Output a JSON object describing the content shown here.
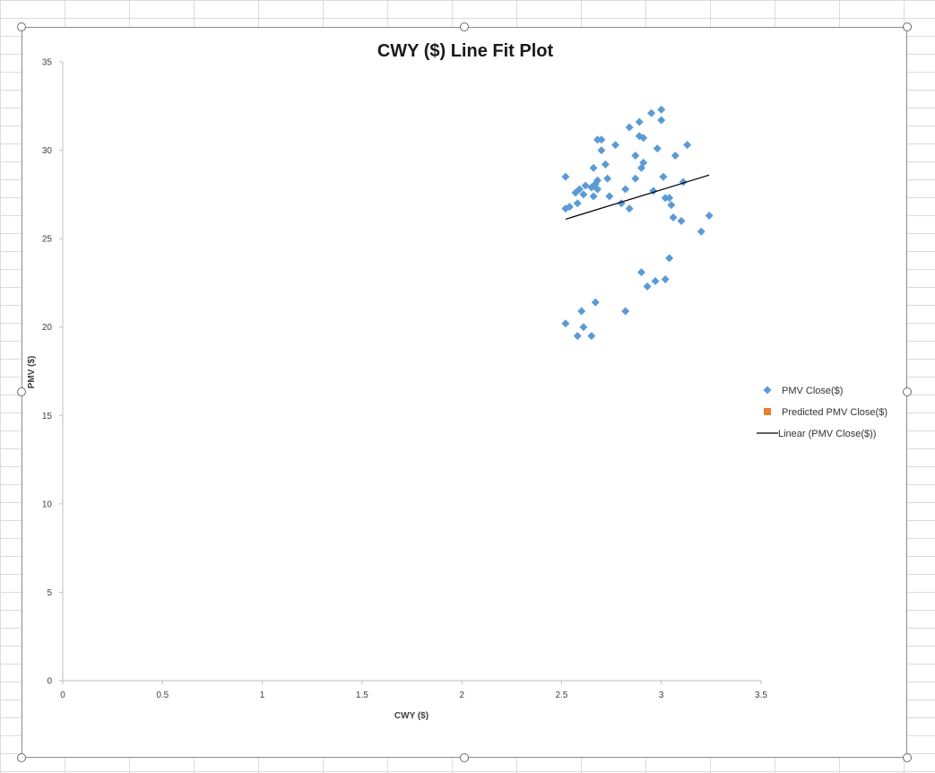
{
  "chart_data": {
    "type": "scatter",
    "title": "CWY ($) Line Fit  Plot",
    "xlabel": "CWY ($)",
    "ylabel": "PMV ($)",
    "xlim": [
      0,
      3.5
    ],
    "ylim": [
      0,
      35
    ],
    "x_ticks": [
      "0",
      "0.5",
      "1",
      "1.5",
      "2",
      "2.5",
      "3",
      "3.5"
    ],
    "y_ticks": [
      "0",
      "5",
      "10",
      "15",
      "20",
      "25",
      "30",
      "35"
    ],
    "grid": false,
    "legend_position": "right",
    "series": [
      {
        "name": "PMV Close($)",
        "type": "scatter",
        "marker": "diamond",
        "color": "#5b9bd5",
        "points": [
          [
            2.52,
            28.5
          ],
          [
            2.52,
            26.7
          ],
          [
            2.54,
            26.8
          ],
          [
            2.57,
            27.6
          ],
          [
            2.58,
            27.0
          ],
          [
            2.59,
            27.8
          ],
          [
            2.61,
            27.5
          ],
          [
            2.62,
            28.0
          ],
          [
            2.65,
            27.9
          ],
          [
            2.66,
            27.4
          ],
          [
            2.66,
            29.0
          ],
          [
            2.67,
            28.1
          ],
          [
            2.68,
            27.8
          ],
          [
            2.68,
            28.3
          ],
          [
            2.68,
            30.6
          ],
          [
            2.7,
            30.0
          ],
          [
            2.7,
            30.6
          ],
          [
            2.72,
            29.2
          ],
          [
            2.73,
            28.4
          ],
          [
            2.74,
            27.4
          ],
          [
            2.77,
            30.3
          ],
          [
            2.8,
            27.0
          ],
          [
            2.82,
            27.8
          ],
          [
            2.84,
            26.7
          ],
          [
            2.84,
            31.3
          ],
          [
            2.87,
            28.4
          ],
          [
            2.87,
            29.7
          ],
          [
            2.89,
            30.8
          ],
          [
            2.89,
            31.6
          ],
          [
            2.9,
            29.0
          ],
          [
            2.91,
            30.7
          ],
          [
            2.91,
            29.3
          ],
          [
            2.95,
            32.1
          ],
          [
            2.96,
            27.7
          ],
          [
            2.98,
            30.1
          ],
          [
            3.0,
            32.3
          ],
          [
            3.0,
            31.7
          ],
          [
            3.01,
            28.5
          ],
          [
            3.02,
            27.3
          ],
          [
            3.04,
            27.3
          ],
          [
            3.05,
            26.9
          ],
          [
            3.06,
            26.2
          ],
          [
            3.07,
            29.7
          ],
          [
            3.1,
            26.0
          ],
          [
            3.11,
            28.2
          ],
          [
            3.13,
            30.3
          ],
          [
            3.2,
            25.4
          ],
          [
            3.24,
            26.3
          ],
          [
            2.52,
            20.2
          ],
          [
            2.58,
            19.5
          ],
          [
            2.6,
            20.9
          ],
          [
            2.61,
            20.0
          ],
          [
            2.65,
            19.5
          ],
          [
            2.67,
            21.4
          ],
          [
            2.82,
            20.9
          ],
          [
            2.9,
            23.1
          ],
          [
            2.93,
            22.3
          ],
          [
            2.97,
            22.6
          ],
          [
            3.02,
            22.7
          ],
          [
            3.04,
            23.9
          ]
        ]
      },
      {
        "name": "Predicted PMV Close($)",
        "type": "scatter",
        "marker": "square",
        "color": "#ed7d31",
        "points": []
      },
      {
        "name": "Linear (PMV Close($))",
        "type": "trendline",
        "color": "#000000",
        "points": [
          [
            2.52,
            26.1
          ],
          [
            3.24,
            28.6
          ]
        ]
      }
    ]
  }
}
